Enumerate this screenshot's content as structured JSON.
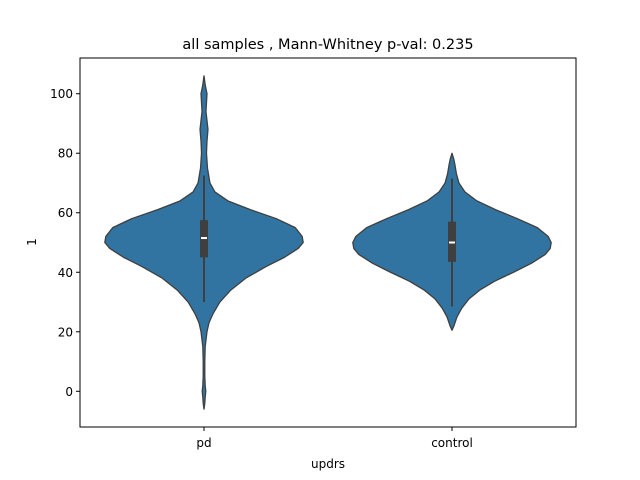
{
  "chart_data": {
    "type": "violin",
    "title": "all samples , Mann-Whitney p-val: 0.235",
    "xlabel": "updrs",
    "ylabel": "1",
    "categories": [
      "pd",
      "control"
    ],
    "ylim": [
      -12,
      112
    ],
    "yticks": [
      0,
      20,
      40,
      60,
      80,
      100
    ],
    "grid": false,
    "color": "#3274a1",
    "edge_color": "#3f3f3f",
    "violins": [
      {
        "category": "pd",
        "box": {
          "whisker_low": 30,
          "q1": 45,
          "median": 51.5,
          "q3": 57.5,
          "whisker_high": 72.5
        },
        "density_profile": [
          [
            -6,
            0.0
          ],
          [
            -4,
            0.008
          ],
          [
            -2,
            0.012
          ],
          [
            0,
            0.018
          ],
          [
            2,
            0.012
          ],
          [
            5,
            0.008
          ],
          [
            10,
            0.008
          ],
          [
            15,
            0.012
          ],
          [
            20,
            0.03
          ],
          [
            23,
            0.05
          ],
          [
            26,
            0.09
          ],
          [
            30,
            0.16
          ],
          [
            34,
            0.27
          ],
          [
            38,
            0.42
          ],
          [
            42,
            0.63
          ],
          [
            45,
            0.81
          ],
          [
            48,
            0.95
          ],
          [
            50,
            1.0
          ],
          [
            52,
            0.99
          ],
          [
            55,
            0.92
          ],
          [
            58,
            0.73
          ],
          [
            61,
            0.47
          ],
          [
            64,
            0.24
          ],
          [
            67,
            0.11
          ],
          [
            70,
            0.06
          ],
          [
            75,
            0.035
          ],
          [
            80,
            0.025
          ],
          [
            84,
            0.03
          ],
          [
            88,
            0.04
          ],
          [
            91,
            0.03
          ],
          [
            94,
            0.02
          ],
          [
            97,
            0.025
          ],
          [
            100,
            0.03
          ],
          [
            103,
            0.012
          ],
          [
            106,
            0.0
          ]
        ]
      },
      {
        "category": "control",
        "box": {
          "whisker_low": 28.5,
          "q1": 43.5,
          "median": 50,
          "q3": 57,
          "whisker_high": 71.5
        },
        "density_profile": [
          [
            20.5,
            0.0
          ],
          [
            22,
            0.02
          ],
          [
            25,
            0.05
          ],
          [
            28,
            0.1
          ],
          [
            31,
            0.17
          ],
          [
            34,
            0.28
          ],
          [
            37,
            0.43
          ],
          [
            40,
            0.62
          ],
          [
            43,
            0.8
          ],
          [
            46,
            0.94
          ],
          [
            48,
            0.99
          ],
          [
            50,
            1.0
          ],
          [
            52,
            0.97
          ],
          [
            55,
            0.86
          ],
          [
            58,
            0.66
          ],
          [
            61,
            0.44
          ],
          [
            64,
            0.25
          ],
          [
            67,
            0.13
          ],
          [
            70,
            0.07
          ],
          [
            73,
            0.045
          ],
          [
            76,
            0.03
          ],
          [
            78,
            0.018
          ],
          [
            80,
            0.0
          ]
        ]
      }
    ]
  }
}
